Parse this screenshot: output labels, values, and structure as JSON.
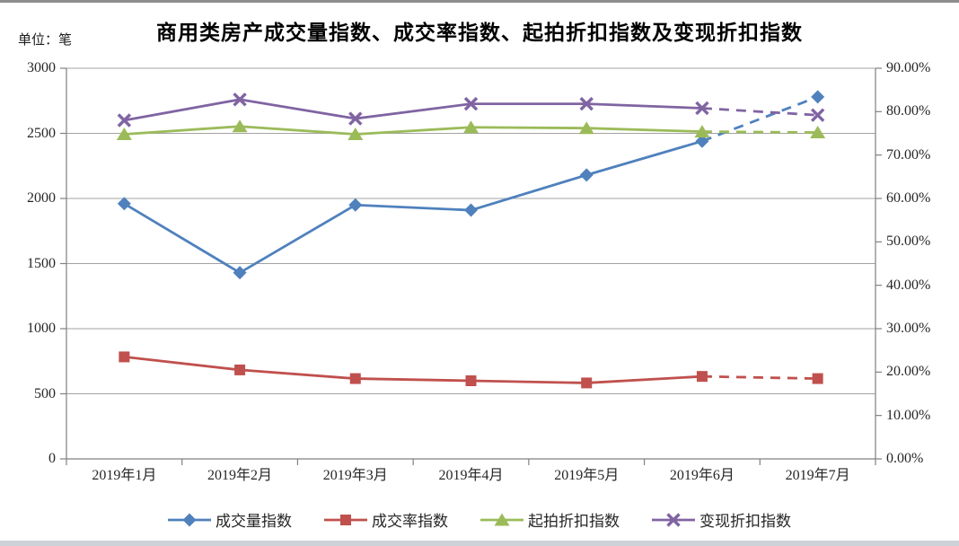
{
  "title": "商用类房产成交量指数、成交率指数、起拍折扣指数及变现折扣指数",
  "unit_label": "单位：笔",
  "colors": {
    "series_blue": "#4F81BD",
    "series_red": "#C0504D",
    "series_green": "#9BBB59",
    "series_purple": "#8064A2",
    "gridline": "#A3A3A3",
    "axis_line": "#808080",
    "text": "#262626"
  },
  "chart_data": {
    "type": "line",
    "title": "商用类房产成交量指数、成交率指数、起拍折扣指数及变现折扣指数",
    "categories": [
      "2019年1月",
      "2019年2月",
      "2019年3月",
      "2019年4月",
      "2019年5月",
      "2019年6月",
      "2019年7月"
    ],
    "series": [
      {
        "name": "成交量指数",
        "axis": "left",
        "color": "#4F81BD",
        "marker": "diamond-marker",
        "values": [
          1960,
          1430,
          1950,
          1910,
          2180,
          2440,
          2780
        ],
        "last_segment_style": "dashed"
      },
      {
        "name": "成交率指数",
        "axis": "right",
        "color": "#C0504D",
        "marker": "square-marker",
        "values": [
          23.5,
          20.5,
          18.5,
          18.0,
          17.5,
          19.0,
          18.5
        ],
        "last_segment_style": "dashed"
      },
      {
        "name": "起拍折扣指数",
        "axis": "right",
        "color": "#9BBB59",
        "marker": "triangle-marker",
        "values": [
          74.8,
          76.6,
          74.8,
          76.4,
          76.2,
          75.4,
          75.2
        ],
        "last_segment_style": "dashed"
      },
      {
        "name": "变现折扣指数",
        "axis": "right",
        "color": "#8064A2",
        "marker": "x-marker",
        "values": [
          78.0,
          82.8,
          78.4,
          81.8,
          81.8,
          80.8,
          79.2
        ],
        "last_segment_style": "dashed"
      }
    ],
    "left_axis": {
      "title": "单位：笔",
      "min": 0,
      "max": 3000,
      "step": 500,
      "tick_labels": [
        "3000",
        "2500",
        "2000",
        "1500",
        "1000",
        "500",
        "0"
      ]
    },
    "right_axis": {
      "min": 0,
      "max": 90,
      "step": 10,
      "tick_labels": [
        "90.00%",
        "80.00%",
        "70.00%",
        "60.00%",
        "50.00%",
        "40.00%",
        "30.00%",
        "20.00%",
        "10.00%",
        "0.00%"
      ]
    },
    "grid": "horizontal gridlines on (every 500 left / 15% right)",
    "legend_position": "bottom"
  }
}
